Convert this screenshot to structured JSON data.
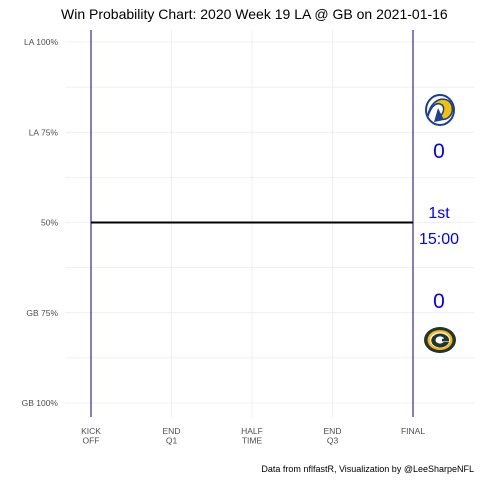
{
  "chart_data": {
    "type": "line",
    "title": "Win Probability Chart: 2020 Week 19 LA @ GB on 2021-01-16",
    "caption": "Data from nflfastR, Visualization by @LeeSharpeNFL",
    "y_ticks": [
      {
        "value": 1.0,
        "label": "LA 100%"
      },
      {
        "value": 0.75,
        "label": "LA 75%"
      },
      {
        "value": 0.5,
        "label": "50%"
      },
      {
        "value": 0.25,
        "label": "GB 75%"
      },
      {
        "value": 0.0,
        "label": "GB 100%"
      }
    ],
    "x_ticks": [
      {
        "value": 0,
        "label": [
          "KICK",
          "OFF"
        ]
      },
      {
        "value": 15,
        "label": [
          "END",
          "Q1"
        ]
      },
      {
        "value": 30,
        "label": [
          "HALF",
          "TIME"
        ]
      },
      {
        "value": 45,
        "label": [
          "END",
          "Q3"
        ]
      },
      {
        "value": 60,
        "label": [
          "FINAL"
        ]
      }
    ],
    "xlim": [
      0,
      60
    ],
    "ylim": [
      0,
      1
    ],
    "series": [
      {
        "x": [
          0,
          60
        ],
        "y": [
          0.5,
          0.5
        ],
        "color": "#000000"
      }
    ],
    "vlines": [
      0,
      60
    ],
    "vline_color": "#00008b",
    "grid": true,
    "annotations": {
      "away_team": "LA",
      "home_team": "GB",
      "away_score": "0",
      "home_score": "0",
      "quarter": "1st",
      "clock": "15:00",
      "text_color": "#0000ff"
    }
  }
}
